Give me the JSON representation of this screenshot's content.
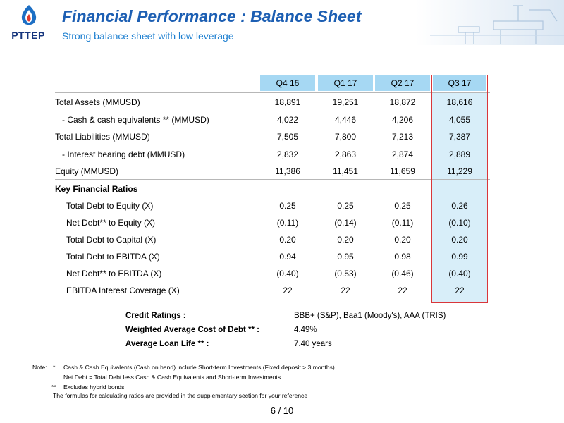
{
  "header": {
    "logo_text": "PTTEP",
    "title": "Financial Performance : Balance Sheet",
    "subtitle": "Strong balance sheet with low leverage"
  },
  "table": {
    "columns": [
      "Q4 16",
      "Q1 17",
      "Q2 17",
      "Q3 17"
    ],
    "rows": [
      {
        "label": "Total Assets (MMUSD)",
        "values": [
          "18,891",
          "19,251",
          "18,872",
          "18,616"
        ]
      },
      {
        "label": "- Cash & cash equivalents ** (MMUSD)",
        "values": [
          "4,022",
          "4,446",
          "4,206",
          "4,055"
        ]
      },
      {
        "label": "Total Liabilities (MMUSD)",
        "values": [
          "7,505",
          "7,800",
          "7,213",
          "7,387"
        ]
      },
      {
        "label": "- Interest bearing debt (MMUSD)",
        "values": [
          "2,832",
          "2,863",
          "2,874",
          "2,889"
        ]
      },
      {
        "label": "Equity (MMUSD)",
        "values": [
          "11,386",
          "11,451",
          "11,659",
          "11,229"
        ]
      }
    ],
    "ratios_heading": "Key Financial Ratios",
    "ratios": [
      {
        "label": "Total Debt to Equity (X)",
        "values": [
          "0.25",
          "0.25",
          "0.25",
          "0.26"
        ]
      },
      {
        "label": "Net Debt** to Equity (X)",
        "values": [
          "(0.11)",
          "(0.14)",
          "(0.11)",
          "(0.10)"
        ]
      },
      {
        "label": "Total Debt to Capital (X)",
        "values": [
          "0.20",
          "0.20",
          "0.20",
          "0.20"
        ]
      },
      {
        "label": "Total Debt to EBITDA (X)",
        "values": [
          "0.94",
          "0.95",
          "0.98",
          "0.99"
        ]
      },
      {
        "label": "Net Debt** to EBITDA (X)",
        "values": [
          "(0.40)",
          "(0.53)",
          "(0.46)",
          "(0.40)"
        ]
      },
      {
        "label": "EBITDA Interest Coverage (X)",
        "values": [
          "22",
          "22",
          "22",
          "22"
        ]
      }
    ]
  },
  "credit": [
    {
      "label": "Credit Ratings :",
      "value": "BBB+ (S&P), Baa1 (Moody's),  AAA (TRIS)"
    },
    {
      "label": "Weighted Average Cost of Debt ** :",
      "value": "4.49%"
    },
    {
      "label": "Average Loan Life ** :",
      "value": "7.40 years"
    }
  ],
  "notes": {
    "prefix": "Note:",
    "star1_mark": "*",
    "star1_text": "Cash & Cash Equivalents (Cash on hand) include Short-term Investments (Fixed deposit > 3 months)",
    "star1_text2": "Net Debt = Total Debt less Cash & Cash Equivalents and Short-term Investments",
    "star2_mark": "**",
    "star2_text": "Excludes hybrid bonds",
    "formula_text": "The formulas for calculating ratios are provided in the supplementary section for your reference"
  },
  "page_number": "6 / 10",
  "colors": {
    "title": "#1d5fb3",
    "header_fill": "#a6d8f3",
    "highlight_fill": "#d8eef9",
    "highlight_border": "#d9363a",
    "logo": "#16357d"
  }
}
